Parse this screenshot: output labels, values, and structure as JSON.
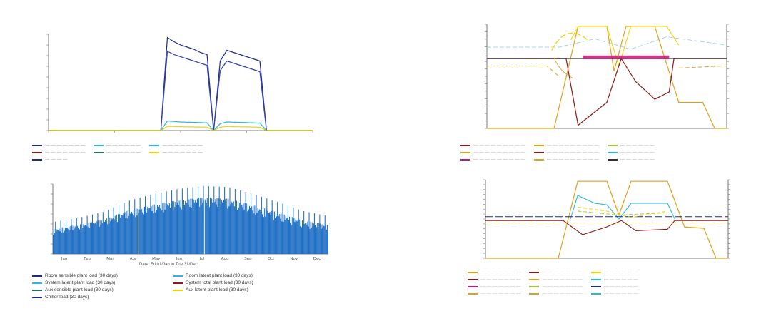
{
  "chart_data": [
    {
      "type": "line",
      "title": "",
      "note": "Top-left: load profile over one day-like period",
      "x": [
        0,
        1,
        2,
        3,
        4,
        5,
        6,
        7,
        8,
        9,
        10,
        11,
        12,
        13,
        14,
        15,
        16,
        17,
        18,
        19,
        20,
        21,
        22,
        23,
        24,
        25,
        26,
        27,
        28,
        29,
        30,
        31,
        32,
        33,
        34,
        35,
        36,
        37,
        38,
        39,
        40
      ],
      "series": [
        {
          "color": "#1b2a8a",
          "values": [
            0,
            0,
            0,
            0,
            0,
            0,
            0,
            0,
            0,
            0,
            0,
            0,
            0,
            0,
            0,
            0,
            0,
            0,
            8700,
            8300,
            8000,
            7800,
            7600,
            7300,
            7100,
            0,
            6500,
            7500,
            7300,
            7100,
            6900,
            6700,
            6500,
            0,
            0,
            0,
            0,
            0,
            0,
            0,
            0
          ]
        },
        {
          "color": "#3340b0",
          "values": [
            0,
            0,
            0,
            0,
            0,
            0,
            0,
            0,
            0,
            0,
            0,
            0,
            0,
            0,
            0,
            0,
            0,
            0,
            7400,
            7100,
            6900,
            6700,
            6500,
            6300,
            6100,
            0,
            5600,
            6500,
            6300,
            6100,
            5900,
            5700,
            5500,
            0,
            0,
            0,
            0,
            0,
            0,
            0,
            0
          ]
        },
        {
          "color": "#2ab7e0",
          "values": [
            0,
            0,
            0,
            0,
            0,
            0,
            0,
            0,
            0,
            0,
            0,
            0,
            0,
            0,
            0,
            0,
            0,
            0,
            900,
            850,
            800,
            780,
            760,
            740,
            720,
            0,
            650,
            800,
            780,
            760,
            740,
            720,
            700,
            0,
            0,
            0,
            0,
            0,
            0,
            0,
            0
          ]
        },
        {
          "color": "#f2d200",
          "values": [
            0,
            0,
            0,
            0,
            0,
            0,
            0,
            0,
            0,
            0,
            0,
            0,
            0,
            0,
            0,
            0,
            0,
            0,
            400,
            380,
            360,
            350,
            340,
            330,
            320,
            0,
            300,
            380,
            360,
            350,
            340,
            330,
            320,
            0,
            0,
            0,
            0,
            0,
            0,
            0,
            0
          ]
        }
      ],
      "ylim": [
        0,
        9000
      ]
    },
    {
      "type": "bar",
      "title": "",
      "xlabel": "Date: Fri 01/Jan to Tue 31/Dec",
      "categories": [
        "Jan",
        "Feb",
        "Mar",
        "Apr",
        "May",
        "Jun",
        "Jul",
        "Aug",
        "Sep",
        "Oct",
        "Nov",
        "Dec"
      ],
      "monthly_peak": [
        320000,
        360000,
        420000,
        530000,
        600000,
        650000,
        680000,
        670000,
        600000,
        520000,
        430000,
        380000
      ],
      "monthly_base": [
        150000,
        190000,
        230000,
        290000,
        330000,
        370000,
        400000,
        380000,
        320000,
        260000,
        200000,
        160000
      ],
      "ylim": [
        0,
        700000
      ],
      "color": "#1f6fc5"
    }
  ],
  "right_charts": {
    "top_series_colors": [
      "#8b1a1a",
      "#e0a020",
      "#c21875",
      "#9ad0e0",
      "#f2d200",
      "#333333"
    ],
    "bottom_series_colors": [
      "#e0a020",
      "#2ab7e0",
      "#8b1a1a",
      "#f2d200",
      "#1b2a8a",
      "#9acd32"
    ]
  },
  "legend_left": {
    "items": [
      {
        "label": "Room sensible plant load (30 days)",
        "color": "#1b2a8a"
      },
      {
        "label": "Room latent plant load (30 days)",
        "color": "#2ab7e0"
      },
      {
        "label": "System latent plant load (30 days)",
        "color": "#2ab7e0"
      },
      {
        "label": "System total plant load (30 days)",
        "color": "#8b1a1a"
      },
      {
        "label": "Aux sensible plant load (30 days)",
        "color": "#1b7a5a"
      },
      {
        "label": "Aux latent plant load (30 days)",
        "color": "#f2d200"
      },
      {
        "label": "Chiller load (30 days)",
        "color": "#1b2a8a"
      }
    ]
  }
}
